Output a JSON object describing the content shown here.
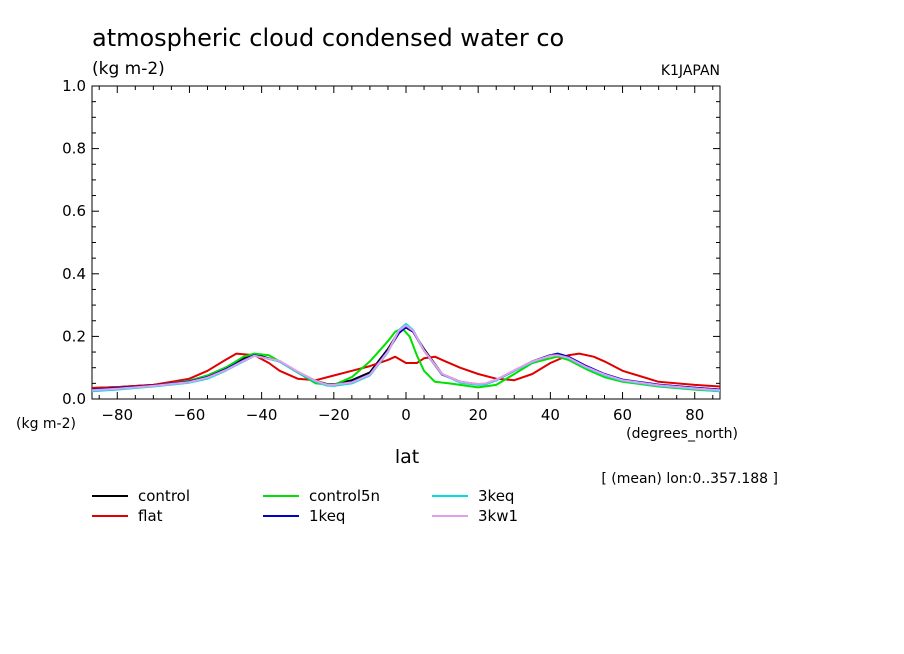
{
  "header": {
    "title": "atmospheric cloud condensed water co",
    "units": "(kg m-2)",
    "source": "K1JAPAN",
    "note": "[ (mean) lon:0..357.188 ]"
  },
  "chart_data": {
    "type": "line",
    "title": "atmospheric cloud condensed water co",
    "xlabel": "lat",
    "xunits": "(degrees_north)",
    "yunits": "(kg m-2)",
    "xlim": [
      -87,
      87
    ],
    "ylim": [
      0,
      1.0
    ],
    "xticks": [
      -80,
      -60,
      -40,
      -20,
      0,
      20,
      40,
      60,
      80
    ],
    "yticks": [
      0.0,
      0.2,
      0.4,
      0.6,
      0.8,
      1.0
    ],
    "ytick_labels": [
      "0.0",
      "0.2",
      "0.4",
      "0.6",
      "0.8",
      "1.0"
    ],
    "grid": false,
    "legend_position": "below",
    "series": [
      {
        "name": "control",
        "color": "#000000",
        "x": [
          -87,
          -80,
          -70,
          -60,
          -55,
          -50,
          -45,
          -42,
          -35,
          -30,
          -25,
          -22,
          -20,
          -15,
          -10,
          -5,
          -2,
          0,
          2,
          5,
          10,
          15,
          20,
          22,
          25,
          30,
          35,
          40,
          42,
          45,
          50,
          55,
          60,
          70,
          80,
          87
        ],
        "y": [
          0.035,
          0.038,
          0.045,
          0.058,
          0.075,
          0.1,
          0.13,
          0.143,
          0.12,
          0.085,
          0.058,
          0.048,
          0.047,
          0.06,
          0.085,
          0.16,
          0.215,
          0.228,
          0.215,
          0.16,
          0.08,
          0.055,
          0.047,
          0.048,
          0.06,
          0.09,
          0.12,
          0.14,
          0.143,
          0.13,
          0.1,
          0.077,
          0.06,
          0.045,
          0.036,
          0.03
        ]
      },
      {
        "name": "flat",
        "color": "#e00000",
        "x": [
          -87,
          -80,
          -70,
          -60,
          -55,
          -50,
          -47,
          -42,
          -38,
          -35,
          -30,
          -25,
          -20,
          -15,
          -10,
          -5,
          -3,
          0,
          3,
          5,
          8,
          10,
          15,
          20,
          25,
          30,
          35,
          40,
          45,
          48,
          52,
          55,
          60,
          70,
          80,
          87
        ],
        "y": [
          0.035,
          0.038,
          0.045,
          0.065,
          0.09,
          0.125,
          0.145,
          0.14,
          0.115,
          0.09,
          0.065,
          0.06,
          0.075,
          0.09,
          0.105,
          0.125,
          0.135,
          0.115,
          0.115,
          0.13,
          0.135,
          0.125,
          0.1,
          0.08,
          0.065,
          0.06,
          0.08,
          0.115,
          0.14,
          0.145,
          0.135,
          0.12,
          0.09,
          0.055,
          0.045,
          0.04
        ]
      },
      {
        "name": "control5n",
        "color": "#00e000",
        "x": [
          -87,
          -80,
          -70,
          -60,
          -55,
          -50,
          -45,
          -42,
          -38,
          -35,
          -30,
          -25,
          -20,
          -15,
          -10,
          -5,
          -3,
          -1,
          1,
          3,
          5,
          8,
          12,
          20,
          25,
          30,
          35,
          40,
          42,
          45,
          50,
          55,
          60,
          70,
          80,
          87
        ],
        "y": [
          0.03,
          0.035,
          0.042,
          0.058,
          0.075,
          0.1,
          0.135,
          0.145,
          0.14,
          0.12,
          0.085,
          0.05,
          0.045,
          0.07,
          0.12,
          0.185,
          0.215,
          0.225,
          0.2,
          0.14,
          0.09,
          0.055,
          0.05,
          0.037,
          0.045,
          0.08,
          0.115,
          0.13,
          0.135,
          0.125,
          0.095,
          0.07,
          0.055,
          0.04,
          0.03,
          0.025
        ]
      },
      {
        "name": "1keq",
        "color": "#0000c8",
        "x": [
          -87,
          -80,
          -70,
          -60,
          -55,
          -50,
          -45,
          -42,
          -35,
          -30,
          -25,
          -22,
          -20,
          -15,
          -10,
          -5,
          -2,
          0,
          2,
          5,
          10,
          15,
          20,
          22,
          25,
          30,
          35,
          40,
          42,
          45,
          50,
          55,
          60,
          70,
          80,
          87
        ],
        "y": [
          0.03,
          0.035,
          0.043,
          0.056,
          0.07,
          0.095,
          0.125,
          0.14,
          0.12,
          0.085,
          0.055,
          0.045,
          0.045,
          0.055,
          0.08,
          0.155,
          0.21,
          0.23,
          0.215,
          0.155,
          0.078,
          0.055,
          0.046,
          0.048,
          0.06,
          0.09,
          0.12,
          0.14,
          0.145,
          0.135,
          0.105,
          0.08,
          0.062,
          0.046,
          0.036,
          0.03
        ]
      },
      {
        "name": "3keq",
        "color": "#00e0e0",
        "x": [
          -87,
          -80,
          -70,
          -60,
          -55,
          -50,
          -45,
          -42,
          -35,
          -30,
          -25,
          -22,
          -20,
          -15,
          -10,
          -5,
          -2,
          0,
          2,
          5,
          10,
          15,
          20,
          22,
          25,
          30,
          35,
          40,
          42,
          45,
          50,
          55,
          60,
          70,
          80,
          87
        ],
        "y": [
          0.025,
          0.03,
          0.04,
          0.052,
          0.065,
          0.09,
          0.12,
          0.138,
          0.12,
          0.085,
          0.055,
          0.043,
          0.042,
          0.05,
          0.075,
          0.15,
          0.22,
          0.24,
          0.22,
          0.155,
          0.08,
          0.052,
          0.045,
          0.046,
          0.06,
          0.09,
          0.118,
          0.138,
          0.14,
          0.13,
          0.1,
          0.075,
          0.058,
          0.042,
          0.032,
          0.025
        ]
      },
      {
        "name": "3kw1",
        "color": "#e89ce8",
        "x": [
          -87,
          -80,
          -70,
          -60,
          -55,
          -50,
          -45,
          -42,
          -35,
          -30,
          -25,
          -22,
          -20,
          -15,
          -10,
          -5,
          -2,
          0,
          2,
          5,
          10,
          15,
          20,
          22,
          25,
          30,
          35,
          40,
          42,
          45,
          50,
          55,
          60,
          70,
          80,
          87
        ],
        "y": [
          0.028,
          0.033,
          0.042,
          0.054,
          0.068,
          0.092,
          0.122,
          0.138,
          0.122,
          0.088,
          0.058,
          0.046,
          0.045,
          0.053,
          0.078,
          0.152,
          0.218,
          0.235,
          0.218,
          0.155,
          0.08,
          0.055,
          0.048,
          0.05,
          0.062,
          0.092,
          0.12,
          0.138,
          0.14,
          0.132,
          0.102,
          0.078,
          0.06,
          0.044,
          0.034,
          0.028
        ]
      }
    ]
  }
}
